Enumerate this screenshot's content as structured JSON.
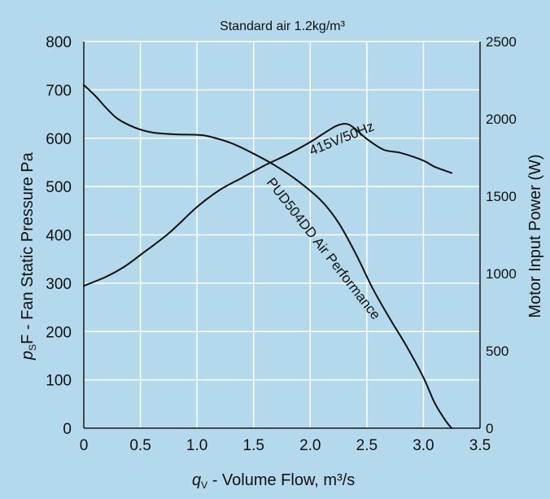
{
  "chart_data": {
    "type": "line",
    "title": "Standard air 1.2kg/m³",
    "xlabel": {
      "var": "q",
      "sub": "V",
      "text": " - Volume Flow, m³/s"
    },
    "ylabel_left": {
      "var": "p",
      "sub": "S",
      "text": "F - Fan Static Pressure  Pa"
    },
    "ylabel_right": "Motor Input Power (W)",
    "xlim": [
      0,
      3.5
    ],
    "ylim_left": [
      0,
      800
    ],
    "ylim_right": [
      0,
      2500
    ],
    "x_ticks": [
      "0",
      "0.5",
      "1.0",
      "1.5",
      "2.0",
      "2.5",
      "3.0",
      "3.5"
    ],
    "y_ticks_left": [
      "0",
      "100",
      "200",
      "300",
      "400",
      "500",
      "600",
      "700",
      "800"
    ],
    "y_ticks_right": [
      "0",
      "500",
      "1000",
      "1500",
      "2000",
      "2500"
    ],
    "grid": true,
    "colors": {
      "background": "#b5d9ec",
      "plot": "#b5d9ec",
      "grid": "#ffffff",
      "line": "#111111"
    },
    "series": [
      {
        "name": "PUD504DD Air Performance",
        "axis": "left",
        "x": [
          0.0,
          0.1,
          0.2,
          0.3,
          0.45,
          0.6,
          0.8,
          1.0,
          1.1,
          1.3,
          1.5,
          1.7,
          1.9,
          2.1,
          2.25,
          2.4,
          2.55,
          2.7,
          2.85,
          3.0,
          3.1,
          3.2,
          3.25
        ],
        "values": [
          710,
          688,
          662,
          640,
          622,
          612,
          608,
          607,
          604,
          590,
          568,
          542,
          510,
          470,
          425,
          362,
          290,
          228,
          170,
          105,
          52,
          14,
          0
        ]
      },
      {
        "name": "415V/50Hz",
        "axis": "right",
        "x": [
          0.0,
          0.2,
          0.35,
          0.5,
          0.75,
          1.0,
          1.2,
          1.4,
          1.6,
          1.8,
          2.0,
          2.15,
          2.25,
          2.35,
          2.5,
          2.65,
          2.8,
          3.0,
          3.1,
          3.25
        ],
        "values": [
          920,
          980,
          1040,
          1120,
          1260,
          1430,
          1540,
          1620,
          1700,
          1770,
          1850,
          1920,
          1960,
          1960,
          1870,
          1800,
          1780,
          1730,
          1690,
          1650
        ]
      }
    ]
  }
}
